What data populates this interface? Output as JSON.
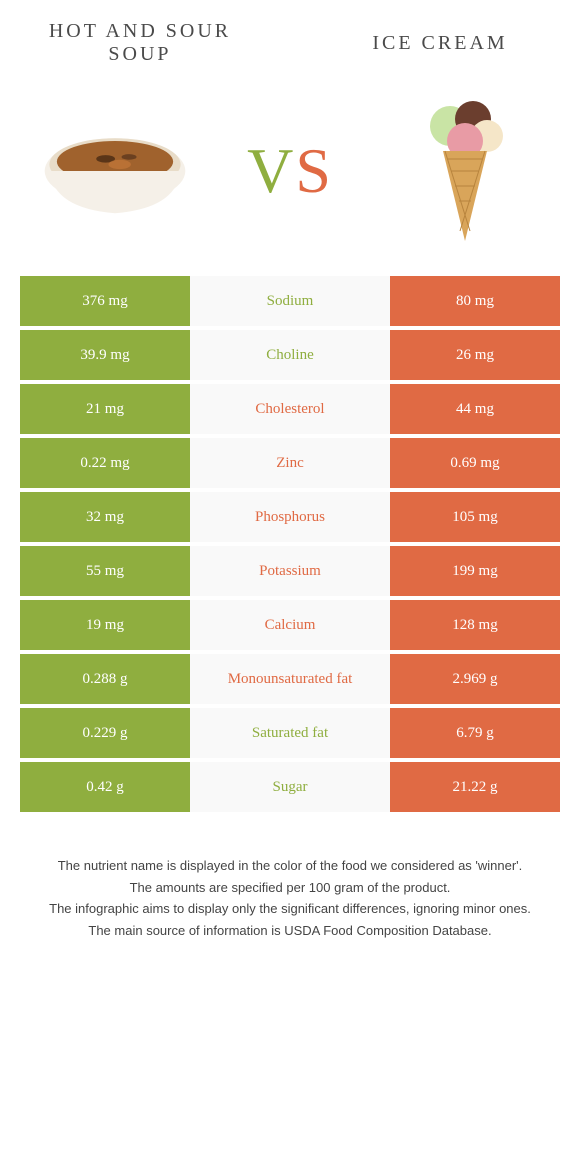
{
  "colors": {
    "green": "#8fae3f",
    "orange": "#e06a44",
    "mid_bg": "#f9f9f9",
    "text_dark": "#4a4a4a"
  },
  "header": {
    "left_title": "Hot and sour soup",
    "right_title": "Ice cream",
    "vs": "VS"
  },
  "rows": [
    {
      "nutrient": "Sodium",
      "left": "376 mg",
      "right": "80 mg",
      "winner": "left"
    },
    {
      "nutrient": "Choline",
      "left": "39.9 mg",
      "right": "26 mg",
      "winner": "left"
    },
    {
      "nutrient": "Cholesterol",
      "left": "21 mg",
      "right": "44 mg",
      "winner": "right"
    },
    {
      "nutrient": "Zinc",
      "left": "0.22 mg",
      "right": "0.69 mg",
      "winner": "right"
    },
    {
      "nutrient": "Phosphorus",
      "left": "32 mg",
      "right": "105 mg",
      "winner": "right"
    },
    {
      "nutrient": "Potassium",
      "left": "55 mg",
      "right": "199 mg",
      "winner": "right"
    },
    {
      "nutrient": "Calcium",
      "left": "19 mg",
      "right": "128 mg",
      "winner": "right"
    },
    {
      "nutrient": "Monounsaturated fat",
      "left": "0.288 g",
      "right": "2.969 g",
      "winner": "right"
    },
    {
      "nutrient": "Saturated fat",
      "left": "0.229 g",
      "right": "6.79 g",
      "winner": "left"
    },
    {
      "nutrient": "Sugar",
      "left": "0.42 g",
      "right": "21.22 g",
      "winner": "left"
    }
  ],
  "footnotes": [
    "The nutrient name is displayed in the color of the food we considered as 'winner'.",
    "The amounts are specified per 100 gram of the product.",
    "The infographic aims to display only the significant differences, ignoring minor ones.",
    "The main source of information is USDA Food Composition Database."
  ]
}
